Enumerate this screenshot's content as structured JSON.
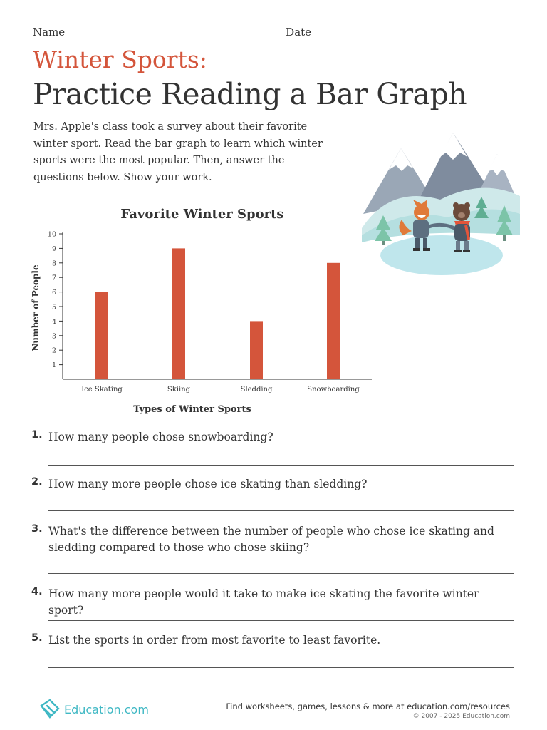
{
  "header": {
    "name_label": "Name",
    "date_label": "Date"
  },
  "subtitle": "Winter Sports:",
  "title": "Practice Reading a Bar Graph",
  "intro": "Mrs. Apple's class took a survey about their favorite winter sport. Read the bar graph to learn which winter sports were the most popular. Then, answer the questions below. Show your work.",
  "colors": {
    "accent": "#d4553b",
    "bar": "#d4553b",
    "brand": "#3fb8c4"
  },
  "chart_data": {
    "type": "bar",
    "title": "Favorite Winter Sports",
    "xlabel": "Types of Winter Sports",
    "ylabel": "Number of People",
    "categories": [
      "Ice Skating",
      "Skiing",
      "Sledding",
      "Snowboarding"
    ],
    "values": [
      6,
      9,
      4,
      8
    ],
    "ylim": [
      0,
      10
    ],
    "yticks": [
      "1",
      "2",
      "3",
      "4",
      "5",
      "6",
      "7",
      "8",
      "9",
      "10"
    ],
    "grid": false,
    "legend": "none"
  },
  "questions": [
    {
      "num": "1.",
      "text": "How many people chose snowboarding?"
    },
    {
      "num": "2.",
      "text": "How many more people chose ice skating than sledding?"
    },
    {
      "num": "3.",
      "text": "What's the difference between the number of people who chose ice skating and sledding compared to those who chose skiing?"
    },
    {
      "num": "4.",
      "text": "How many more people would it take to make ice skating the favorite winter sport?"
    },
    {
      "num": "5.",
      "text": "List the sports in order from most favorite to least favorite."
    }
  ],
  "footer": {
    "brand": "Education.com",
    "find": "Find worksheets, games, lessons & more at education.com/resources",
    "copyright": "© 2007 - 2025 Education.com"
  }
}
